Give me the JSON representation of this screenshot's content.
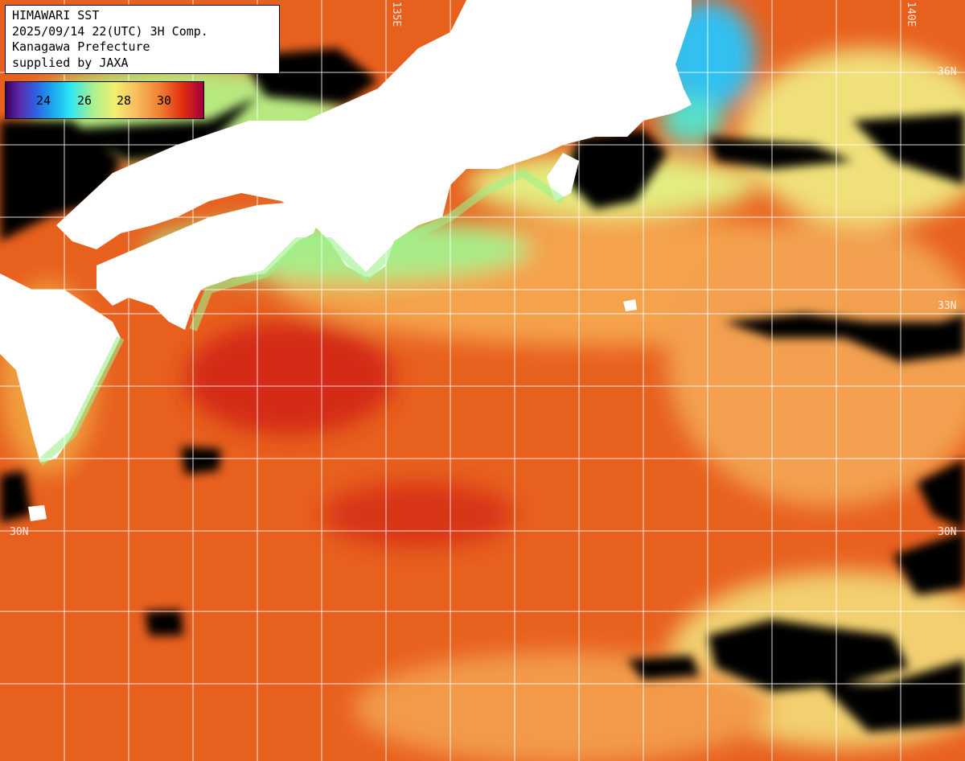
{
  "info": {
    "line1": "HIMAWARI SST",
    "line2": "2025/09/14 22(UTC) 3H Comp.",
    "line3": "Kanagawa Prefecture",
    "line4": "supplied by JAXA"
  },
  "legend": {
    "ticks": [
      "24",
      "26",
      "28",
      "30"
    ],
    "colors": [
      "#3b0060",
      "#2f5fe0",
      "#2fe8f0",
      "#f0f070",
      "#f08030",
      "#e02a10",
      "#a00040"
    ]
  },
  "grid_labels": {
    "lat_33_right": "33N",
    "lat_30_left": "30N",
    "lat_30_right": "30N",
    "lat_36_right": "36N",
    "lon_top_a": "135E",
    "lon_top_b": "140E"
  },
  "colors": {
    "land": "#ffffff",
    "no_data": "#000000",
    "warm_sea": "#e85a1a",
    "hot_sea": "#d8321a",
    "mild_sea": "#f4a04a",
    "cool_sea": "#f0e070",
    "coastal": "#80e890",
    "cold_coast": "#30c8f0",
    "grid": "#ffffff"
  }
}
